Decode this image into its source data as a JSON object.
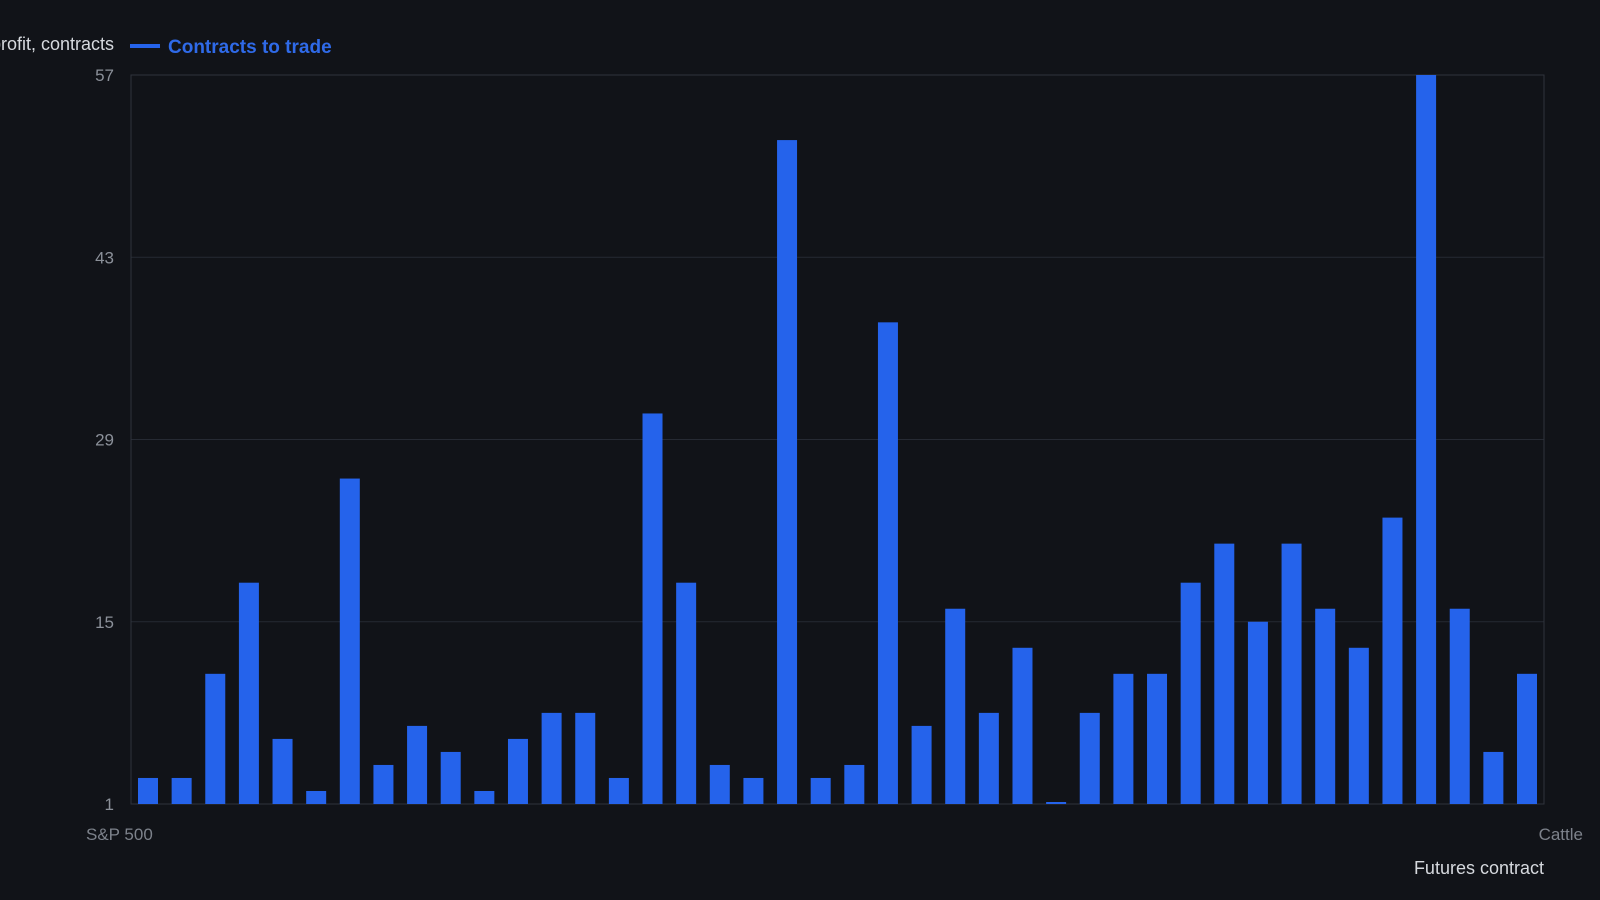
{
  "colors": {
    "background": "#111318",
    "bar": "#2563eb",
    "legend_text": "#2f6ae8"
  },
  "chart_data": {
    "type": "bar",
    "title": "",
    "ylabel": "Avg. profit, contracts",
    "xlabel": "Futures contract",
    "ylim": [
      1,
      57
    ],
    "yticks": [
      1,
      15,
      29,
      43,
      57
    ],
    "grid": true,
    "legend_placement": "top-left",
    "series": [
      {
        "name": "Contracts to trade",
        "color": "#2563eb",
        "values": [
          3,
          3,
          11,
          18,
          6,
          2,
          26,
          4,
          7,
          5,
          2,
          6,
          8,
          8,
          3,
          31,
          18,
          4,
          3,
          52,
          3,
          4,
          38,
          7,
          16,
          8,
          13,
          1,
          8,
          11,
          11,
          18,
          21,
          15,
          21,
          16,
          13,
          23,
          57,
          16,
          5,
          11
        ]
      }
    ],
    "categories_visible": [
      "S&P 500",
      "Cattle"
    ],
    "categories": [
      "S&P 500",
      "",
      "",
      "",
      "",
      "",
      "",
      "",
      "",
      "",
      "",
      "",
      "",
      "",
      "",
      "",
      "",
      "",
      "",
      "",
      "",
      "",
      "",
      "",
      "",
      "",
      "",
      "",
      "",
      "",
      "",
      "",
      "",
      "",
      "",
      "",
      "",
      "",
      "",
      "",
      "",
      "Cattle"
    ]
  }
}
